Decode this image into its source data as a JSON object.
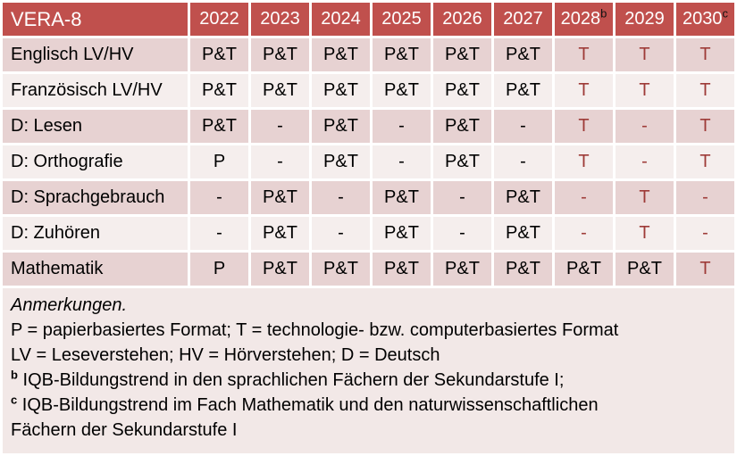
{
  "table": {
    "title": "VERA-8",
    "years": [
      {
        "label": "2022",
        "sup": ""
      },
      {
        "label": "2023",
        "sup": ""
      },
      {
        "label": "2024",
        "sup": ""
      },
      {
        "label": "2025",
        "sup": ""
      },
      {
        "label": "2026",
        "sup": ""
      },
      {
        "label": "2027",
        "sup": ""
      },
      {
        "label": "2028",
        "sup": "b"
      },
      {
        "label": "2029",
        "sup": ""
      },
      {
        "label": "2030",
        "sup": "c"
      }
    ],
    "rows": [
      {
        "label": "Englisch LV/HV",
        "cells": [
          {
            "text": "P&T",
            "red": false
          },
          {
            "text": "P&T",
            "red": false
          },
          {
            "text": "P&T",
            "red": false
          },
          {
            "text": "P&T",
            "red": false
          },
          {
            "text": "P&T",
            "red": false
          },
          {
            "text": "P&T",
            "red": false
          },
          {
            "text": "T",
            "red": true
          },
          {
            "text": "T",
            "red": true
          },
          {
            "text": "T",
            "red": true
          }
        ]
      },
      {
        "label": "Französisch LV/HV",
        "cells": [
          {
            "text": "P&T",
            "red": false
          },
          {
            "text": "P&T",
            "red": false
          },
          {
            "text": "P&T",
            "red": false
          },
          {
            "text": "P&T",
            "red": false
          },
          {
            "text": "P&T",
            "red": false
          },
          {
            "text": "P&T",
            "red": false
          },
          {
            "text": "T",
            "red": true
          },
          {
            "text": "T",
            "red": true
          },
          {
            "text": "T",
            "red": true
          }
        ]
      },
      {
        "label": "D: Lesen",
        "cells": [
          {
            "text": "P&T",
            "red": false
          },
          {
            "text": "-",
            "red": false
          },
          {
            "text": "P&T",
            "red": false
          },
          {
            "text": "-",
            "red": false
          },
          {
            "text": "P&T",
            "red": false
          },
          {
            "text": "-",
            "red": false
          },
          {
            "text": "T",
            "red": true
          },
          {
            "text": "-",
            "red": true
          },
          {
            "text": "T",
            "red": true
          }
        ]
      },
      {
        "label": "D: Orthografie",
        "cells": [
          {
            "text": "P",
            "red": false
          },
          {
            "text": "-",
            "red": false
          },
          {
            "text": "P&T",
            "red": false
          },
          {
            "text": "-",
            "red": false
          },
          {
            "text": "P&T",
            "red": false
          },
          {
            "text": "-",
            "red": false
          },
          {
            "text": "T",
            "red": true
          },
          {
            "text": "-",
            "red": true
          },
          {
            "text": "T",
            "red": true
          }
        ]
      },
      {
        "label": "D: Sprachgebrauch",
        "cells": [
          {
            "text": "-",
            "red": false
          },
          {
            "text": "P&T",
            "red": false
          },
          {
            "text": "-",
            "red": false
          },
          {
            "text": "P&T",
            "red": false
          },
          {
            "text": "-",
            "red": false
          },
          {
            "text": "P&T",
            "red": false
          },
          {
            "text": "-",
            "red": true
          },
          {
            "text": "T",
            "red": true
          },
          {
            "text": "-",
            "red": true
          }
        ]
      },
      {
        "label": "D: Zuhören",
        "cells": [
          {
            "text": "-",
            "red": false
          },
          {
            "text": "P&T",
            "red": false
          },
          {
            "text": "-",
            "red": false
          },
          {
            "text": "P&T",
            "red": false
          },
          {
            "text": "-",
            "red": false
          },
          {
            "text": "P&T",
            "red": false
          },
          {
            "text": "-",
            "red": true
          },
          {
            "text": "T",
            "red": true
          },
          {
            "text": "-",
            "red": true
          }
        ]
      },
      {
        "label": "Mathematik",
        "cells": [
          {
            "text": "P",
            "red": false
          },
          {
            "text": "P&T",
            "red": false
          },
          {
            "text": "P&T",
            "red": false
          },
          {
            "text": "P&T",
            "red": false
          },
          {
            "text": "P&T",
            "red": false
          },
          {
            "text": "P&T",
            "red": false
          },
          {
            "text": "P&T",
            "red": false
          },
          {
            "text": "P&T",
            "red": false
          },
          {
            "text": "T",
            "red": true
          }
        ]
      }
    ]
  },
  "notes": {
    "heading": "Anmerkungen.",
    "lines": [
      {
        "sup": "",
        "text": "P = papierbasiertes Format; T = technologie- bzw. computerbasiertes Format"
      },
      {
        "sup": "",
        "text": "LV = Leseverstehen; HV = Hörverstehen; D = Deutsch"
      },
      {
        "sup": "b",
        "text": "IQB-Bildungstrend in den sprachlichen Fächern der Sekundarstufe I;"
      },
      {
        "sup": "c",
        "text": "IQB-Bildungstrend im Fach Mathematik und den naturwissenschaftlichen Fächern der Sekundarstufe I"
      }
    ]
  },
  "colors": {
    "header_bg": "#C0504D",
    "band_dark": "#E7D2D2",
    "band_light": "#F5EEED",
    "notes_bg": "#F2E8E7",
    "red_text": "#9E3B38",
    "header_text": "#FFFFFF",
    "body_text": "#000000"
  }
}
